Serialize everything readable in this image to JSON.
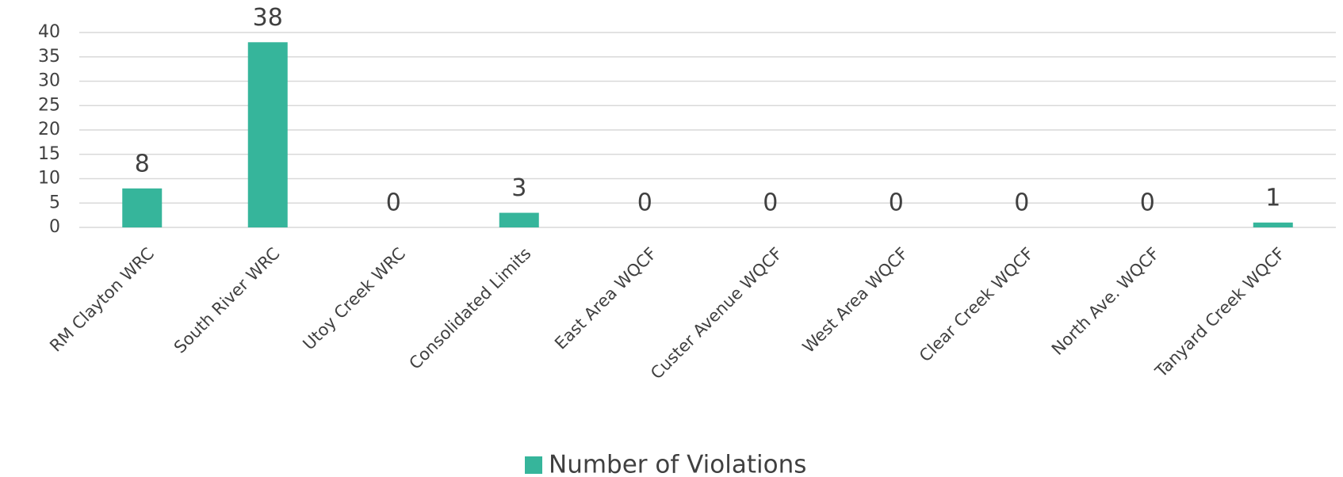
{
  "chart_data": {
    "type": "bar",
    "categories": [
      "RM Clayton WRC",
      "South River WRC",
      "Utoy Creek WRC",
      "Consolidated Limits",
      "East Area WQCF",
      "Custer Avenue WQCF",
      "West Area WQCF",
      "Clear Creek WQCF",
      "North Ave. WQCF",
      "Tanyard Creek WQCF"
    ],
    "series": [
      {
        "name": "Number of Violations",
        "color": "#36b59b",
        "values": [
          8,
          38,
          0,
          3,
          0,
          0,
          0,
          0,
          0,
          1
        ]
      }
    ],
    "ylim": [
      0,
      40
    ],
    "yticks": [
      0,
      5,
      10,
      15,
      20,
      25,
      30,
      35,
      40
    ],
    "grid": true,
    "legend": "bottom"
  }
}
